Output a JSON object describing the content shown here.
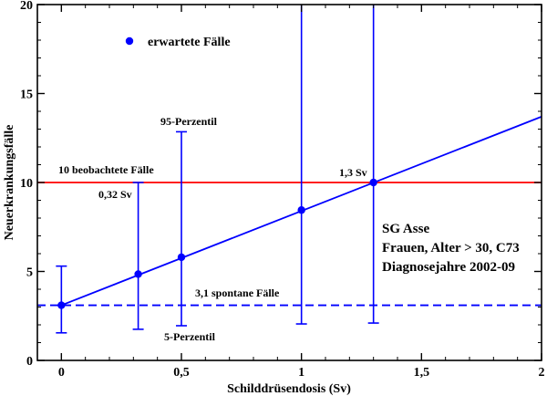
{
  "chart_data": {
    "type": "scatter",
    "xlabel": "Schilddrüsendosis (Sv)",
    "ylabel": "Neuerkrankungsfälle",
    "xlim": [
      -0.1,
      2.0
    ],
    "ylim": [
      0,
      20
    ],
    "x_ticks": [
      0,
      0.5,
      1,
      1.5,
      2
    ],
    "x_tick_labels": [
      "0",
      "0,5",
      "1",
      "1,5",
      "2"
    ],
    "y_ticks": [
      0,
      5,
      10,
      15,
      20
    ],
    "y_tick_labels": [
      "0",
      "5",
      "10",
      "15",
      "20"
    ],
    "legend": {
      "label": "erwartete Fälle",
      "placement": "top-left",
      "color": "#0000ff"
    },
    "series": [
      {
        "name": "erwartete Fälle",
        "color": "#0000ff",
        "points": [
          {
            "x": 0.0,
            "y": 3.1,
            "low": 1.55,
            "high": 5.3
          },
          {
            "x": 0.32,
            "y": 4.85,
            "low": 1.75,
            "high": 10.0
          },
          {
            "x": 0.5,
            "y": 5.8,
            "low": 1.95,
            "high": 12.85
          },
          {
            "x": 1.0,
            "y": 8.45,
            "low": 2.05,
            "high": 20.0
          },
          {
            "x": 1.3,
            "y": 10.0,
            "low": 2.1,
            "high": 20.0
          }
        ]
      }
    ],
    "trend_line": {
      "color": "#0000ff",
      "x0": 0.0,
      "y0": 3.1,
      "slope": 5.3
    },
    "reference_lines": [
      {
        "y": 10,
        "color": "#ff0000",
        "style": "solid",
        "label": "10 beobachtete Fälle"
      },
      {
        "y": 3.1,
        "color": "#0000ff",
        "style": "dashed",
        "label": "3,1 spontane Fälle"
      }
    ],
    "annotations": {
      "p95": "95-Perzentil",
      "p5": "5-Perzentil",
      "dose1": "0,32 Sv",
      "dose2": "1,3 Sv"
    },
    "info_box": {
      "line1": "SG Asse",
      "line2": "Frauen, Alter > 30, C73",
      "line3": "Diagnosejahre 2002-09"
    }
  }
}
